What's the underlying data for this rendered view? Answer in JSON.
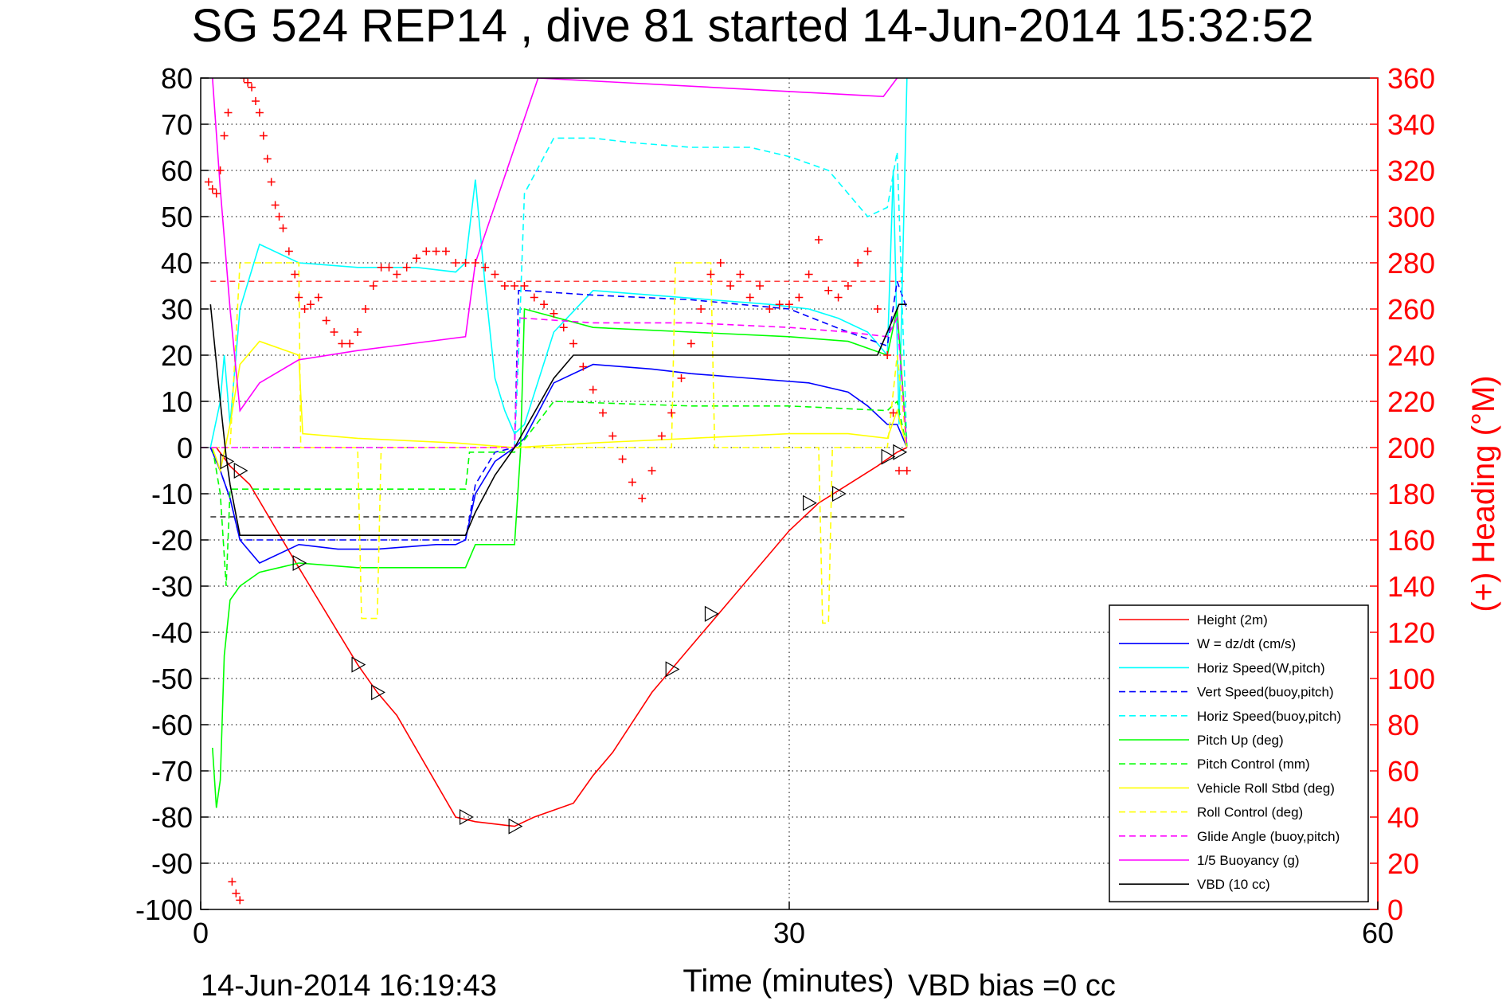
{
  "chart_data": {
    "type": "line",
    "title": "SG 524   REP14  , dive 81 started 14-Jun-2014 15:32:52",
    "xlabel": "Time (minutes)",
    "ylabel": "",
    "y2label": "(+) Heading (°M)",
    "xlim": [
      0,
      60
    ],
    "ylim": [
      -100,
      80
    ],
    "y2lim": [
      0,
      360
    ],
    "x_ticks": [
      "0",
      "30",
      "60"
    ],
    "y_ticks": [
      "80",
      "70",
      "60",
      "50",
      "40",
      "30",
      "20",
      "10",
      "0",
      "-10",
      "-20",
      "-30",
      "-40",
      "-50",
      "-60",
      "-70",
      "-80",
      "-90",
      "-100"
    ],
    "y2_ticks": [
      "360",
      "340",
      "320",
      "300",
      "280",
      "260",
      "240",
      "220",
      "200",
      "180",
      "160",
      "140",
      "120",
      "100",
      "80",
      "60",
      "40",
      "20",
      "0"
    ],
    "grid": true,
    "legend_position": "bottom-right",
    "footer_left": "14-Jun-2014 16:19:43",
    "footer_right": "VBD bias =0 cc",
    "colors": {
      "red": "#ff0000",
      "blue": "#0000ff",
      "cyan": "#00ffff",
      "green": "#00ff00",
      "yellow": "#ffff00",
      "magenta": "#ff00ff",
      "black": "#000000"
    },
    "series": [
      {
        "name": "Height (2m)",
        "color": "#ff0000",
        "dash": false,
        "x": [
          0.8,
          1.5,
          2.5,
          5,
          8,
          9,
          10,
          13,
          14,
          16,
          17,
          19,
          20,
          21,
          23,
          24,
          25,
          27,
          30,
          31.5,
          33,
          34.5,
          35.5,
          36
        ],
        "y": [
          0,
          -4,
          -8,
          -26,
          -47,
          -53,
          -58,
          -80,
          -81,
          -82,
          -80,
          -77,
          -71,
          -66,
          -53,
          -48,
          -43,
          -33,
          -18,
          -12,
          -8,
          -4,
          -1,
          0
        ]
      },
      {
        "name": "W = dz/dt (cm/s)",
        "color": "#0000ff",
        "dash": false,
        "x": [
          0.5,
          1,
          1.5,
          2,
          3,
          5,
          7,
          9,
          12,
          13,
          13.5,
          14,
          15,
          16,
          16.5,
          18,
          20,
          23,
          25,
          28,
          31,
          33,
          34,
          35,
          35.5,
          36
        ],
        "y": [
          0,
          -5,
          -11,
          -20,
          -25,
          -21,
          -22,
          -22,
          -21,
          -21,
          -20,
          -10,
          -3,
          0,
          2,
          14,
          18,
          17,
          16,
          15,
          14,
          12,
          9,
          5,
          5,
          0
        ]
      },
      {
        "name": "Horiz Speed(W,pitch)",
        "color": "#00ffff",
        "dash": false,
        "x": [
          0.5,
          1,
          1.2,
          1.5,
          2,
          3,
          5,
          8,
          11,
          13,
          13.5,
          14,
          14.5,
          15,
          15.5,
          16,
          16.5,
          18,
          20,
          23,
          26,
          29,
          31,
          32.5,
          34,
          35,
          35.3,
          35.6,
          36
        ],
        "y": [
          0,
          10,
          20,
          5,
          30,
          44,
          40,
          39,
          39,
          38,
          40,
          58,
          35,
          15,
          8,
          3,
          5,
          25,
          34,
          33,
          32,
          31,
          30,
          28,
          25,
          20,
          60,
          5,
          80
        ]
      },
      {
        "name": "Vert Speed(buoy,pitch)",
        "color": "#0000ff",
        "dash": true,
        "x": [
          0.5,
          1,
          1.5,
          2,
          5,
          10,
          13.5,
          14,
          15,
          16,
          16.2,
          16.5,
          20,
          25,
          30,
          33,
          35,
          35.5,
          36
        ],
        "y": [
          0,
          -5,
          -11,
          -20,
          -20,
          -20,
          -20,
          -8,
          -1,
          0,
          34,
          34,
          33,
          32,
          30,
          25,
          22,
          36,
          30
        ]
      },
      {
        "name": "Horiz Speed(buoy,pitch)",
        "color": "#00ffff",
        "dash": true,
        "x": [
          16,
          16.2,
          16.5,
          18,
          20,
          22,
          25,
          28,
          30,
          32,
          34,
          35,
          35.5,
          36
        ],
        "y": [
          0,
          20,
          55,
          67,
          67,
          66,
          65,
          65,
          63,
          60,
          50,
          52,
          64,
          0
        ]
      },
      {
        "name": "Pitch Up (deg)",
        "color": "#00ff00",
        "dash": false,
        "x": [
          0.6,
          0.8,
          1,
          1.2,
          1.5,
          2,
          3,
          4,
          5,
          8,
          13.5,
          14,
          16,
          16.3,
          16.5,
          20,
          25,
          30,
          33,
          35,
          35.5,
          36
        ],
        "y": [
          -65,
          -78,
          -72,
          -45,
          -33,
          -30,
          -27,
          -26,
          -25,
          -26,
          -26,
          -21,
          -21,
          -1,
          30,
          26,
          25,
          24,
          23,
          20,
          30,
          0
        ]
      },
      {
        "name": "Pitch Control (mm)",
        "color": "#00ff00",
        "dash": true,
        "x": [
          0.6,
          1,
          1.3,
          1.5,
          2,
          13.5,
          13.7,
          16,
          16.2,
          18,
          25,
          30,
          35,
          35.5,
          36
        ],
        "y": [
          0,
          -10,
          -30,
          -9,
          -9,
          -9,
          -1,
          -1,
          0,
          10,
          9,
          9,
          8,
          10,
          0
        ]
      },
      {
        "name": "Vehicle Roll Stbd (deg)",
        "color": "#ffff00",
        "dash": false,
        "x": [
          0.6,
          1,
          1.5,
          2,
          3,
          5,
          5.2,
          8,
          13,
          16,
          20,
          25,
          30,
          33,
          35,
          35.5,
          36
        ],
        "y": [
          0,
          -5,
          5,
          18,
          23,
          20,
          3,
          2,
          1,
          0,
          1,
          2,
          3,
          3,
          2,
          8,
          0
        ]
      },
      {
        "name": "Roll Control (deg)",
        "color": "#ffff00",
        "dash": true,
        "x": [
          0.6,
          1.5,
          2,
          5,
          5.1,
          8,
          8.2,
          8.3,
          9,
          9.2,
          16,
          24,
          24.2,
          26,
          26.2,
          31.5,
          31.7,
          32,
          32.2,
          35,
          35.5,
          36
        ],
        "y": [
          0,
          0,
          40,
          40,
          0,
          0,
          -37,
          -37,
          -37,
          0,
          0,
          0,
          40,
          40,
          0,
          0,
          -38,
          -38,
          0,
          0,
          20,
          0
        ]
      },
      {
        "name": "Glide Angle (buoy,pitch)",
        "color": "#ff00ff",
        "dash": true,
        "x": [
          0,
          16,
          16.2,
          16.5,
          20,
          25,
          30,
          33,
          35,
          35.5,
          36
        ],
        "y": [
          0,
          0,
          28,
          28,
          27,
          27,
          26,
          25,
          24,
          28,
          0
        ]
      },
      {
        "name": "1/5 Buoyancy (g)",
        "color": "#ff00ff",
        "dash": false,
        "x": [
          0.6,
          1,
          1.5,
          2,
          3,
          5,
          8,
          13.5,
          14,
          17.2,
          34.8,
          35.5
        ],
        "y": [
          80,
          56,
          30,
          8,
          14,
          19,
          21,
          24,
          40,
          80,
          76,
          80
        ]
      },
      {
        "name": "VBD (10 cc)",
        "color": "#000000",
        "dash": false,
        "x": [
          0.5,
          1,
          1.3,
          1.5,
          2,
          13.5,
          14,
          15,
          16,
          18,
          19,
          30,
          34.5,
          35.3,
          35.6,
          36
        ],
        "y": [
          31,
          10,
          -2,
          -8,
          -19,
          -19,
          -14,
          -6,
          0,
          15,
          20,
          20,
          20,
          28,
          31,
          31
        ]
      }
    ],
    "heading": {
      "name": "(+) Heading",
      "color": "#ff0000",
      "x": [
        0.4,
        0.6,
        0.8,
        1,
        1.2,
        1.4,
        1.6,
        1.8,
        2,
        2.2,
        2.4,
        2.6,
        2.8,
        3,
        3.2,
        3.4,
        3.6,
        3.8,
        4,
        4.2,
        4.5,
        4.8,
        5,
        5.3,
        5.6,
        6,
        6.4,
        6.8,
        7.2,
        7.6,
        8,
        8.4,
        8.8,
        9.2,
        9.6,
        10,
        10.5,
        11,
        11.5,
        12,
        12.5,
        13,
        13.5,
        14,
        14.5,
        15,
        15.5,
        16,
        16.5,
        17,
        17.5,
        18,
        18.5,
        19,
        19.5,
        20,
        20.5,
        21,
        21.5,
        22,
        22.5,
        23,
        23.5,
        24,
        24.5,
        25,
        25.5,
        26,
        26.5,
        27,
        27.5,
        28,
        28.5,
        29,
        29.5,
        30,
        30.5,
        31,
        31.5,
        32,
        32.5,
        33,
        33.5,
        34,
        34.5,
        35,
        35.3,
        35.6,
        36
      ],
      "y": [
        315,
        312,
        310,
        320,
        335,
        345,
        12,
        7,
        4,
        360,
        358,
        356,
        350,
        345,
        335,
        325,
        315,
        305,
        300,
        295,
        285,
        275,
        265,
        260,
        262,
        265,
        255,
        250,
        245,
        245,
        250,
        260,
        270,
        278,
        278,
        275,
        278,
        282,
        285,
        285,
        285,
        280,
        280,
        280,
        278,
        275,
        270,
        270,
        270,
        265,
        262,
        258,
        252,
        245,
        235,
        225,
        215,
        205,
        195,
        185,
        178,
        190,
        205,
        215,
        230,
        245,
        260,
        275,
        280,
        270,
        275,
        265,
        270,
        260,
        262,
        262,
        265,
        275,
        290,
        268,
        265,
        270,
        280,
        285,
        260,
        240,
        215,
        190,
        190
      ]
    },
    "markers": {
      "name": "triangle markers",
      "x": [
        1.3,
        2,
        5,
        8,
        9,
        13.5,
        16,
        24,
        26,
        31,
        32.5,
        35,
        35.6
      ],
      "y": [
        -3,
        -5,
        -25,
        -47,
        -53,
        -80,
        -82,
        -48,
        -36,
        -12,
        -10,
        -2,
        -1
      ]
    },
    "reference_lines": [
      {
        "color": "#ff0000",
        "dash": true,
        "y": 36,
        "x": [
          0.5,
          36
        ]
      },
      {
        "color": "#000000",
        "dash": true,
        "y": -15,
        "x": [
          0.5,
          36
        ]
      }
    ]
  }
}
